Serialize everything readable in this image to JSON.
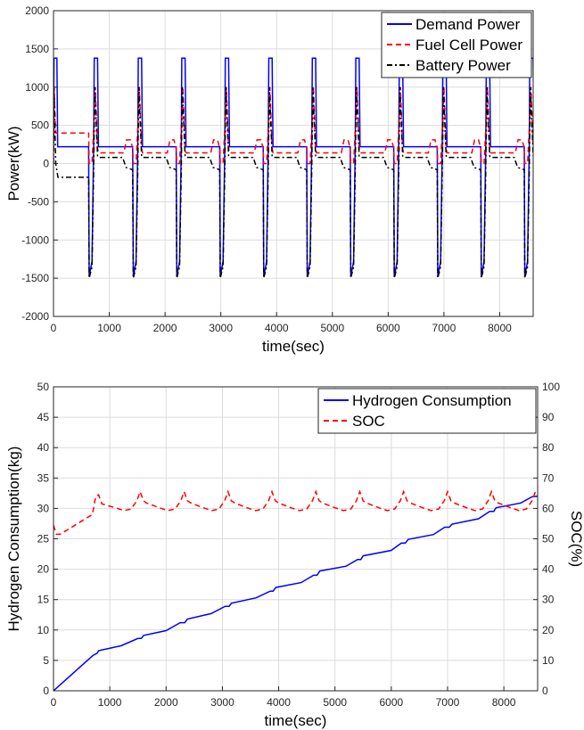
{
  "chart_data": [
    {
      "type": "line",
      "title": "",
      "xlabel": "time(sec)",
      "ylabel": "Power(kW)",
      "xlim": [
        0,
        8600
      ],
      "ylim": [
        -2000,
        2000
      ],
      "xticks": [
        0,
        1000,
        2000,
        3000,
        4000,
        5000,
        6000,
        7000,
        8000
      ],
      "yticks": [
        -2000,
        -1500,
        -1000,
        -500,
        0,
        500,
        1000,
        1500,
        2000
      ],
      "grid": true,
      "legend_position": "top-right",
      "cycle": {
        "count": 11,
        "period_s": 780,
        "first_offset_s": 0,
        "peak_demand_kW": 1380,
        "cruise_demand_kW": 220,
        "regen_min_demand_kW": -1480,
        "fuel_cell_peak_kW": 1000,
        "fuel_cell_cruise_kW": 140,
        "fuel_cell_bump_kW": 310,
        "battery_peak_kW": 1000,
        "battery_cruise_kW": 80,
        "battery_regen_min_kW": -1500
      },
      "initial_segment": {
        "fuel_cell_kW": 400,
        "battery_kW": -180,
        "end_s": 690
      },
      "series": [
        {
          "name": "Demand Power",
          "color": "#0000ff",
          "dash": "solid"
        },
        {
          "name": "Fuel Cell Power",
          "color": "#ff0000",
          "dash": "dashed"
        },
        {
          "name": "Battery Power",
          "color": "#000000",
          "dash": "dashdot"
        }
      ]
    },
    {
      "type": "line",
      "title": "",
      "xlabel": "time(sec)",
      "ylabel": "Hydrogen Consumption(kg)",
      "ylabel_right": "SOC(%)",
      "xlim": [
        0,
        8600
      ],
      "ylim": [
        0,
        50
      ],
      "ylim_right": [
        0,
        100
      ],
      "xticks": [
        0,
        1000,
        2000,
        3000,
        4000,
        5000,
        6000,
        7000,
        8000
      ],
      "yticks": [
        0,
        5,
        10,
        15,
        20,
        25,
        30,
        35,
        40,
        45,
        50
      ],
      "yticks_right": [
        0,
        10,
        20,
        30,
        40,
        50,
        60,
        70,
        80,
        90,
        100
      ],
      "grid": true,
      "legend_position": "top-right",
      "series": [
        {
          "name": "Hydrogen Consumption",
          "color": "#0000ff",
          "dash": "solid",
          "axis": "left",
          "x": [
            0,
            700,
            780,
            800,
            1200,
            1500,
            1560,
            1600,
            2000,
            2250,
            2330,
            2380,
            2800,
            3050,
            3120,
            3160,
            3600,
            3850,
            3900,
            3950,
            4400,
            4620,
            4680,
            4730,
            5200,
            5400,
            5460,
            5500,
            6000,
            6180,
            6250,
            6300,
            6750,
            6950,
            7030,
            7080,
            7550,
            7750,
            7820,
            7860,
            8300,
            8500,
            8600
          ],
          "values": [
            0,
            5.8,
            6.2,
            6.6,
            7.4,
            8.6,
            8.6,
            9.1,
            9.9,
            11.2,
            11.2,
            11.8,
            12.7,
            13.9,
            13.9,
            14.4,
            15.3,
            16.4,
            16.4,
            17.0,
            17.8,
            19.0,
            19.0,
            19.7,
            20.5,
            21.6,
            21.6,
            22.2,
            23.1,
            24.3,
            24.3,
            24.9,
            25.7,
            26.9,
            26.9,
            27.4,
            28.3,
            29.5,
            29.5,
            30.1,
            30.9,
            31.9,
            32.0
          ]
        },
        {
          "name": "SOC",
          "color": "#ff0000",
          "dash": "dashed",
          "axis": "right",
          "x": [
            0,
            50,
            120,
            690,
            750,
            800,
            860,
            1100,
            1250,
            1380,
            1480,
            1540,
            1600,
            1650,
            1880,
            2030,
            2160,
            2260,
            2320,
            2380,
            2440,
            2660,
            2810,
            2940,
            3040,
            3100,
            3160,
            3220,
            3440,
            3590,
            3720,
            3820,
            3880,
            3940,
            4000,
            4220,
            4370,
            4500,
            4600,
            4660,
            4720,
            4780,
            5000,
            5150,
            5280,
            5380,
            5440,
            5500,
            5560,
            5780,
            5930,
            6060,
            6160,
            6220,
            6280,
            6340,
            6560,
            6710,
            6840,
            6940,
            7000,
            7060,
            7120,
            7340,
            7490,
            7620,
            7720,
            7780,
            7840,
            7900,
            8120,
            8270,
            8400,
            8500,
            8560,
            8600
          ],
          "values": [
            54.5,
            51.5,
            51.5,
            58,
            64,
            64.5,
            61.5,
            60.2,
            59.3,
            59.8,
            62.5,
            65.5,
            62.5,
            61.8,
            60.2,
            59.3,
            59.8,
            62.5,
            65.5,
            62.5,
            61.8,
            60.2,
            59.3,
            59.8,
            62.5,
            65.5,
            62.5,
            61.8,
            60.2,
            59.3,
            59.8,
            62.5,
            65.5,
            62.5,
            61.8,
            60.2,
            59.3,
            59.8,
            62.5,
            65.5,
            62.5,
            61.8,
            60.2,
            59.3,
            59.8,
            62.5,
            65.5,
            62.5,
            61.8,
            60.2,
            59.3,
            59.8,
            62.5,
            65.5,
            62.5,
            61.8,
            60.2,
            59.3,
            59.8,
            62.5,
            65.5,
            62.5,
            61.8,
            60.2,
            59.3,
            59.8,
            62.5,
            65.5,
            62.5,
            61.8,
            60.2,
            59.3,
            59.8,
            62.5,
            65.5,
            64.5
          ]
        }
      ]
    }
  ]
}
